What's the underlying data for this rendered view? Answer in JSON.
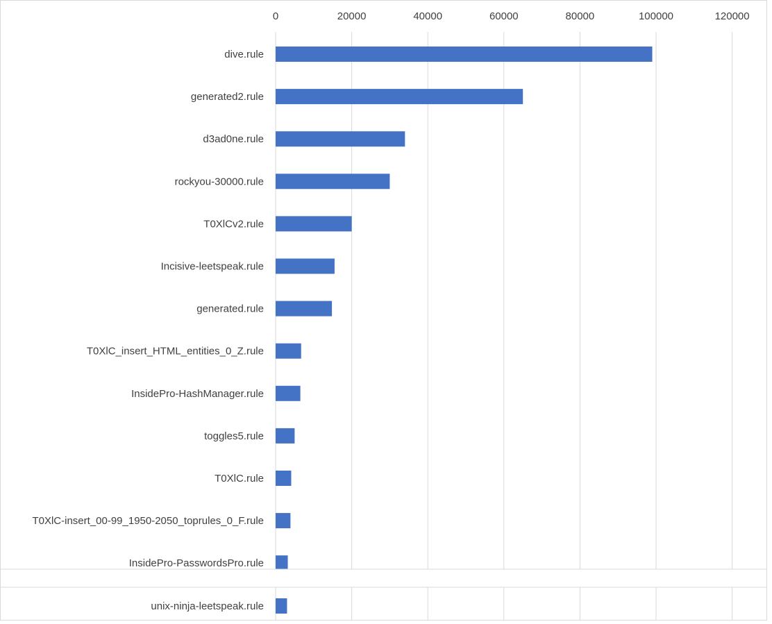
{
  "chart_data": {
    "type": "bar",
    "orientation": "horizontal",
    "x_ticks": [
      0,
      20000,
      40000,
      60000,
      80000,
      100000,
      120000
    ],
    "xlim": [
      0,
      120000
    ],
    "grid": true,
    "bar_color": "#4472C4",
    "grid_color": "#D9D9D9",
    "categories": [
      "dive.rule",
      "generated2.rule",
      "d3ad0ne.rule",
      "rockyou-30000.rule",
      "T0XlCv2.rule",
      "Incisive-leetspeak.rule",
      "generated.rule",
      "T0XlC_insert_HTML_entities_0_Z.rule",
      "InsidePro-HashManager.rule",
      "toggles5.rule",
      "T0XlC.rule",
      "T0XlC-insert_00-99_1950-2050_toprules_0_F.rule",
      "InsidePro-PasswordsPro.rule",
      "unix-ninja-leetspeak.rule"
    ],
    "values": [
      99000,
      65000,
      34000,
      30000,
      20000,
      15500,
      14800,
      6700,
      6500,
      5000,
      4100,
      3900,
      3200,
      3000
    ]
  }
}
